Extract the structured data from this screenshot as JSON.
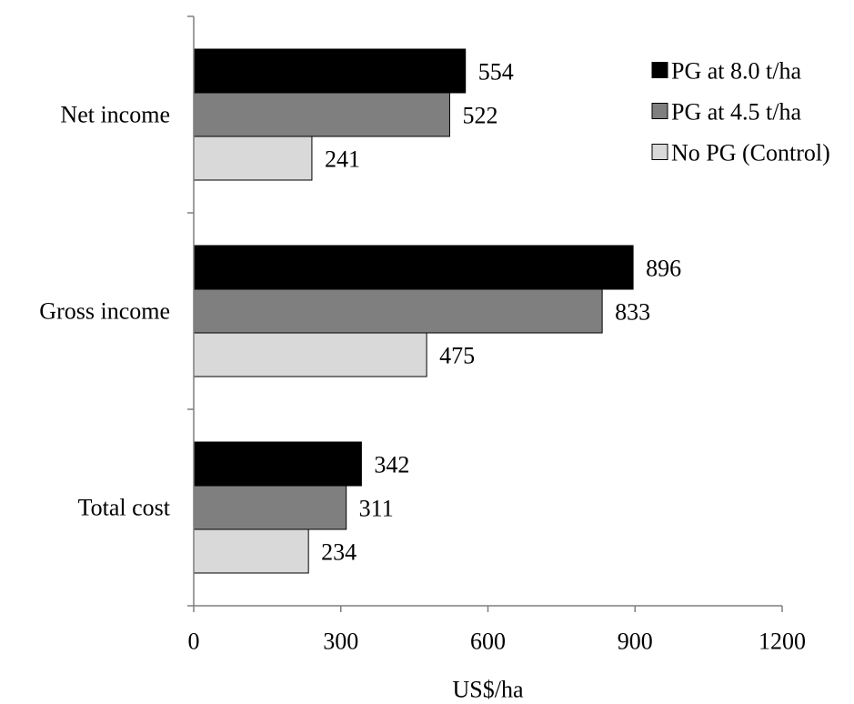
{
  "chart_data": {
    "type": "bar",
    "orientation": "horizontal",
    "categories": [
      "Net income",
      "Gross income",
      "Total cost"
    ],
    "series": [
      {
        "name": "PG at 8.0 t/ha",
        "values": [
          554,
          896,
          342
        ],
        "color": "#000000"
      },
      {
        "name": "PG at 4.5 t/ha",
        "values": [
          522,
          833,
          311
        ],
        "color": "#7f7f7f"
      },
      {
        "name": "No PG (Control)",
        "values": [
          241,
          475,
          234
        ],
        "color": "#d9d9d9"
      }
    ],
    "xlabel": "US$/ha",
    "ylabel": "",
    "xlim": [
      0,
      1200
    ],
    "xticks": [
      "0",
      "300",
      "600",
      "900",
      "1200"
    ],
    "grid": false,
    "legend_position": "top-right",
    "data_labels": true
  }
}
